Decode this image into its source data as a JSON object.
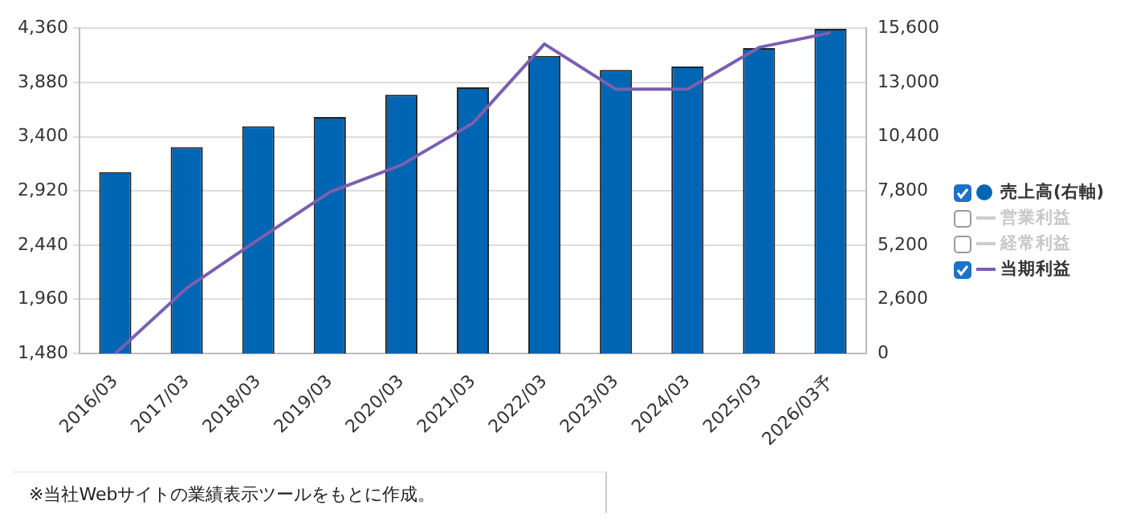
{
  "chart_data": {
    "type": "bar",
    "categories": [
      "2016/03",
      "2017/03",
      "2018/03",
      "2019/03",
      "2020/03",
      "2021/03",
      "2022/03",
      "2023/03",
      "2024/03",
      "2025/03",
      "2026/03予"
    ],
    "series": [
      {
        "name": "売上高(右軸)",
        "axis": "y2",
        "color": "#0065b3",
        "values": [
          8700,
          9900,
          10900,
          11340,
          12410,
          12760,
          14270,
          13600,
          13760,
          14650,
          15570
        ]
      },
      {
        "name": "営業利益",
        "type": "line",
        "axis": "y",
        "color": "#cccccc",
        "values": [
          null,
          null,
          null,
          null,
          null,
          null,
          null,
          null,
          null,
          null,
          null
        ]
      },
      {
        "name": "経常利益",
        "type": "line",
        "axis": "y",
        "color": "#cccccc",
        "values": [
          null,
          null,
          null,
          null,
          null,
          null,
          null,
          null,
          null,
          null,
          null
        ]
      },
      {
        "name": "当期利益",
        "type": "line",
        "axis": "y",
        "color": "#7b5fb0",
        "values": [
          1480,
          2060,
          2490,
          2910,
          3150,
          3520,
          4220,
          3820,
          3820,
          4190,
          4320
        ]
      }
    ],
    "ylim": [
      1480,
      4360
    ],
    "yticks": [
      {
        "value": 1480,
        "label": "1,480"
      },
      {
        "value": 1960,
        "label": "1,960"
      },
      {
        "value": 2440,
        "label": "2,440"
      },
      {
        "value": 2920,
        "label": "2,920"
      },
      {
        "value": 3400,
        "label": "3,400"
      },
      {
        "value": 3880,
        "label": "3,880"
      },
      {
        "value": 4360,
        "label": "4,360"
      }
    ],
    "y2lim": [
      0,
      15600
    ],
    "y2ticks": [
      0,
      {
        "value": 2600,
        "label": "2,600"
      },
      {
        "value": 5200,
        "label": "5,200"
      },
      {
        "value": 7800,
        "label": "7,800"
      },
      {
        "value": 10400,
        "label": "10,400"
      },
      {
        "value": 13000,
        "label": "13,000"
      },
      {
        "value": 15600,
        "label": "15,600"
      }
    ],
    "grid": "y",
    "legend": "right",
    "marker": "none",
    "line_style": "solid",
    "annotations": [
      "※当社Webサイトの業績表示ツールをもとに作成。"
    ]
  }
}
